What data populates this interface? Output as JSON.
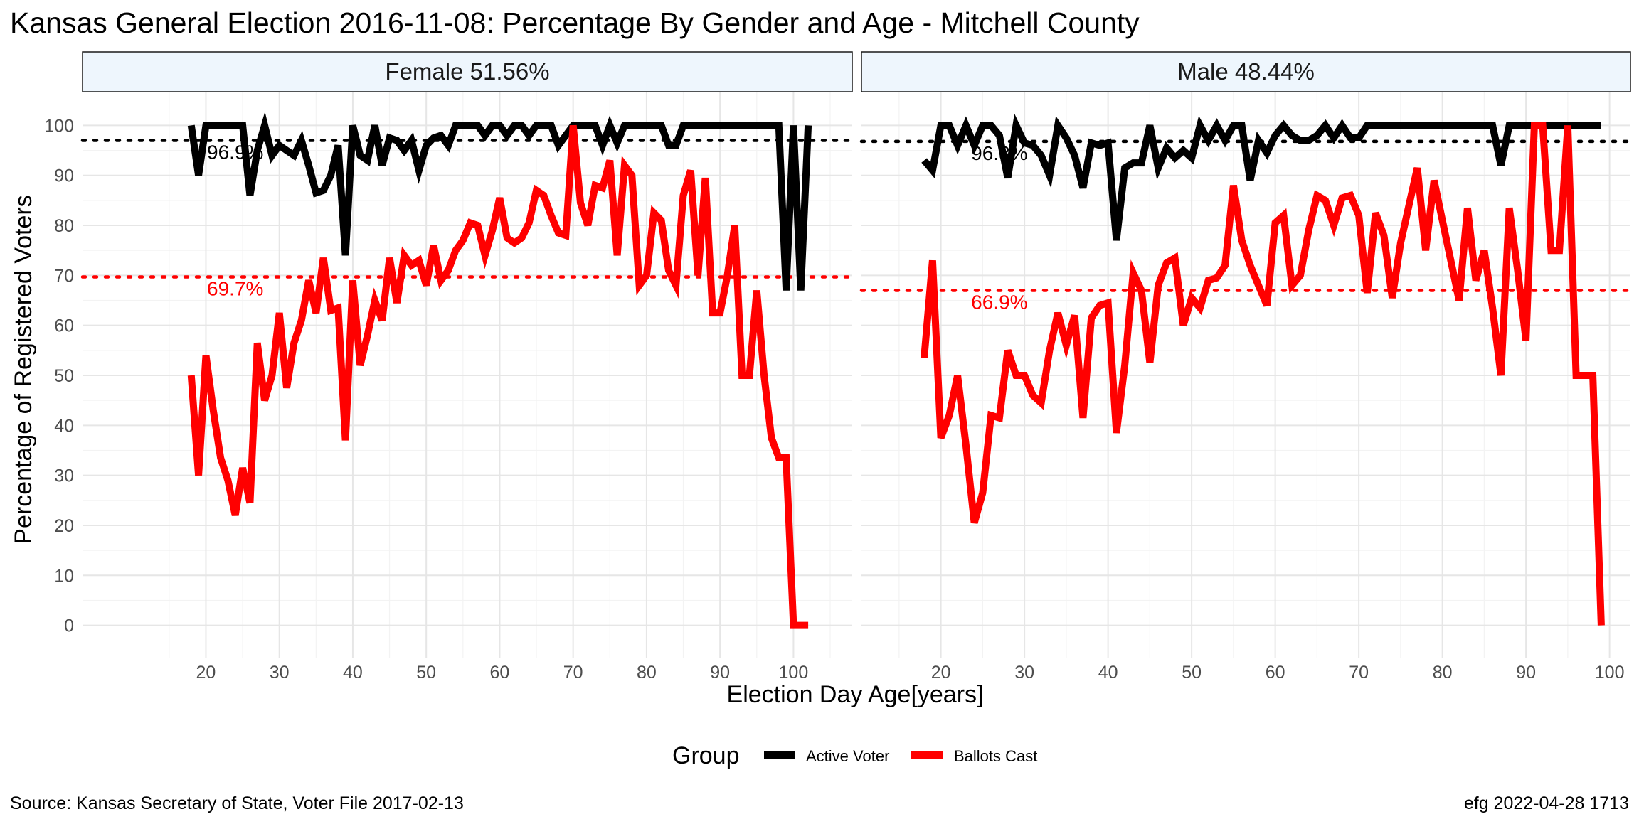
{
  "chart_data": {
    "type": "line",
    "title": "Kansas General Election 2016-11-08:  Percentage By Gender and Age - Mitchell County",
    "xlabel": "Election Day Age[years]",
    "ylabel": "Percentage of Registered Voters",
    "legend": {
      "title": "Group",
      "position": "bottom",
      "entries": [
        {
          "label": "Active Voter",
          "color": "#000000"
        },
        {
          "label": "Ballots Cast",
          "color": "#ff0000"
        }
      ]
    },
    "caption_left": "Source:  Kansas Secretary of State, Voter File  2017-02-13",
    "caption_right": "efg 2022-04-28 1713",
    "ylim": [
      0,
      100
    ],
    "y_ticks": [
      0,
      10,
      20,
      30,
      40,
      50,
      60,
      70,
      80,
      90,
      100
    ],
    "grid": true,
    "panels": [
      {
        "label": "Female 51.56%",
        "xlim": [
          18,
          102
        ],
        "x_ticks": [
          20,
          30,
          40,
          50,
          60,
          70,
          80,
          90,
          100
        ],
        "mean_active": 97,
        "mean_active_label": "96.9%",
        "mean_ballots": 69.7,
        "mean_ballots_label": "69.7%",
        "series": [
          {
            "name": "Active Voter",
            "color": "#000000",
            "x": [
              18,
              19,
              20,
              21,
              22,
              23,
              24,
              25,
              26,
              27,
              28,
              29,
              30,
              31,
              32,
              33,
              34,
              35,
              36,
              37,
              38,
              39,
              40,
              41,
              42,
              43,
              44,
              45,
              46,
              47,
              48,
              49,
              50,
              51,
              52,
              53,
              54,
              55,
              56,
              57,
              58,
              59,
              60,
              61,
              62,
              63,
              64,
              65,
              66,
              67,
              68,
              69,
              70,
              71,
              72,
              73,
              74,
              75,
              76,
              77,
              78,
              79,
              80,
              81,
              82,
              83,
              84,
              85,
              86,
              87,
              88,
              89,
              90,
              91,
              92,
              93,
              94,
              95,
              96,
              97,
              98,
              99,
              100,
              101,
              102
            ],
            "y": [
              100,
              90,
              100,
              100,
              100,
              100,
              100,
              100,
              86,
              95,
              100,
              94,
              96,
              95,
              94,
              97,
              92,
              86.5,
              87,
              90,
              96,
              74,
              100,
              94,
              93,
              100,
              92,
              97.5,
              97,
              95,
              97,
              91,
              96,
              97.5,
              98,
              96,
              100,
              100,
              100,
              100,
              98,
              100,
              100,
              98,
              100,
              100,
              98,
              100,
              100,
              100,
              96,
              98,
              100,
              100,
              100,
              100,
              96,
              100,
              96.5,
              100,
              100,
              100,
              100,
              100,
              100,
              96,
              96,
              100,
              100,
              100,
              100,
              100,
              100,
              100,
              100,
              100,
              100,
              100,
              100,
              100,
              100,
              67,
              100,
              67,
              100
            ]
          },
          {
            "name": "Ballots Cast",
            "color": "#ff0000",
            "x": [
              18,
              19,
              20,
              21,
              22,
              23,
              24,
              25,
              26,
              27,
              28,
              29,
              30,
              31,
              32,
              33,
              34,
              35,
              36,
              37,
              38,
              39,
              40,
              41,
              42,
              43,
              44,
              45,
              46,
              47,
              48,
              49,
              50,
              51,
              52,
              53,
              54,
              55,
              56,
              57,
              58,
              59,
              60,
              61,
              62,
              63,
              64,
              65,
              66,
              67,
              68,
              69,
              70,
              71,
              72,
              73,
              74,
              75,
              76,
              77,
              78,
              79,
              80,
              81,
              82,
              83,
              84,
              85,
              86,
              87,
              88,
              89,
              90,
              91,
              92,
              93,
              94,
              95,
              96,
              97,
              98,
              99,
              100,
              101,
              102
            ],
            "y": [
              50,
              30,
              54,
              43,
              33.5,
              29,
              22,
              31.5,
              24.5,
              56.5,
              45,
              50,
              62.5,
              47.5,
              56.5,
              61,
              69,
              62.5,
              73.5,
              63,
              63.5,
              37,
              69,
              52,
              58,
              65,
              61,
              73.5,
              64.5,
              74,
              72,
              73,
              68,
              76,
              69,
              71,
              75,
              77,
              80.5,
              80,
              74,
              79,
              85.5,
              77.5,
              76.5,
              77.5,
              80.5,
              87,
              86,
              82,
              78.5,
              78,
              100,
              84.5,
              80,
              88,
              87.5,
              93,
              74,
              92,
              90,
              68,
              70,
              82.5,
              81,
              71,
              68,
              86,
              91,
              70,
              89.5,
              62.5,
              62.5,
              70,
              80,
              50,
              50,
              67,
              50,
              37.5,
              33.5,
              33.5,
              0,
              0,
              0
            ]
          }
        ]
      },
      {
        "label": "Male 48.44%",
        "xlim": [
          18,
          99
        ],
        "x_ticks": [
          20,
          30,
          40,
          50,
          60,
          70,
          80,
          90,
          100
        ],
        "mean_active": 96.8,
        "mean_active_label": "96.8%",
        "mean_ballots": 67,
        "mean_ballots_label": "66.9%",
        "series": [
          {
            "name": "Active Voter",
            "color": "#000000",
            "x": [
              18,
              19,
              20,
              21,
              22,
              23,
              24,
              25,
              26,
              27,
              28,
              29,
              30,
              31,
              32,
              33,
              34,
              35,
              36,
              37,
              38,
              39,
              40,
              41,
              42,
              43,
              44,
              45,
              46,
              47,
              48,
              49,
              50,
              51,
              52,
              53,
              54,
              55,
              56,
              57,
              58,
              59,
              60,
              61,
              62,
              63,
              64,
              65,
              66,
              67,
              68,
              69,
              70,
              71,
              72,
              73,
              74,
              75,
              76,
              77,
              78,
              79,
              80,
              81,
              82,
              83,
              84,
              85,
              86,
              87,
              88,
              89,
              90,
              91,
              92,
              93,
              94,
              95,
              96,
              97,
              98,
              99
            ],
            "y": [
              93,
              91,
              100,
              100,
              96,
              100,
              96,
              100,
              100,
              98,
              89.5,
              100,
              96.5,
              96,
              94,
              90,
              100,
              97.5,
              94,
              87.5,
              96.5,
              96,
              96.5,
              77,
              91.5,
              92.5,
              92.5,
              100,
              91.5,
              95.5,
              93.5,
              95,
              93.5,
              100,
              97,
              100,
              97,
              100,
              100,
              89,
              97,
              94.5,
              98,
              100,
              98,
              97,
              97,
              98,
              100,
              97.5,
              100,
              97.5,
              97.5,
              100,
              100,
              100,
              100,
              100,
              100,
              100,
              100,
              100,
              100,
              100,
              100,
              100,
              100,
              100,
              100,
              92,
              100,
              100,
              100,
              100,
              100,
              100,
              100,
              100,
              100,
              100,
              100,
              100
            ]
          },
          {
            "name": "Ballots Cast",
            "color": "#ff0000",
            "x": [
              18,
              19,
              20,
              21,
              22,
              23,
              24,
              25,
              26,
              27,
              28,
              29,
              30,
              31,
              32,
              33,
              34,
              35,
              36,
              37,
              38,
              39,
              40,
              41,
              42,
              43,
              44,
              45,
              46,
              47,
              48,
              49,
              50,
              51,
              52,
              53,
              54,
              55,
              56,
              57,
              58,
              59,
              60,
              61,
              62,
              63,
              64,
              65,
              66,
              67,
              68,
              69,
              70,
              71,
              72,
              73,
              74,
              75,
              76,
              77,
              78,
              79,
              80,
              81,
              82,
              83,
              84,
              85,
              86,
              87,
              88,
              89,
              90,
              91,
              92,
              93,
              94,
              95,
              96,
              97,
              98,
              99
            ],
            "y": [
              53.5,
              73,
              37.5,
              42,
              50,
              36,
              20.5,
              26.5,
              42,
              41.5,
              55,
              50,
              50,
              46,
              44.5,
              55,
              62.5,
              56,
              62,
              41.5,
              61.5,
              64,
              64.5,
              38.5,
              52,
              70.5,
              67,
              52.5,
              68,
              72.5,
              73.5,
              60,
              65.5,
              63.5,
              69,
              69.5,
              72,
              88,
              77,
              72,
              68,
              64,
              80.5,
              82,
              68,
              70,
              79,
              86,
              85,
              80,
              85.5,
              86,
              82,
              66.5,
              82.5,
              78,
              65.5,
              76.5,
              84,
              91.5,
              75,
              89,
              81,
              73,
              65,
              83.5,
              69,
              75,
              63.5,
              50,
              83.5,
              71,
              57,
              100,
              100,
              75,
              75,
              100,
              50,
              50,
              50,
              0
            ]
          }
        ]
      }
    ]
  }
}
